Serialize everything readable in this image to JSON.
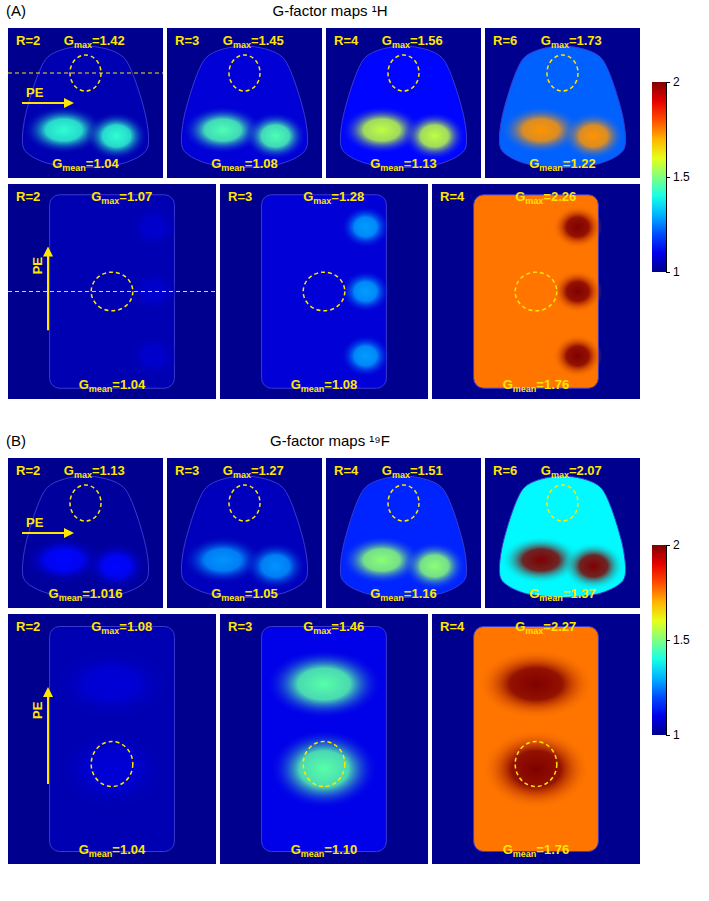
{
  "chart_data": [
    {
      "type": "heatmap",
      "letter": "(A)",
      "title": "G-factor maps ¹H",
      "colorbar": {
        "range": [
          1,
          2
        ],
        "ticks": [
          1,
          1.5,
          2
        ]
      },
      "rows": [
        {
          "orientation": "horizontal",
          "pe": "PE",
          "panels": [
            {
              "R": "R=2",
              "gmax": 1.42,
              "gmax_label": "Gmax=1.42",
              "gmean": 1.04,
              "gmean_label": "Gmean=1.04"
            },
            {
              "R": "R=3",
              "gmax": 1.45,
              "gmax_label": "Gmax=1.45",
              "gmean": 1.08,
              "gmean_label": "Gmean=1.08"
            },
            {
              "R": "R=4",
              "gmax": 1.56,
              "gmax_label": "Gmax=1.56",
              "gmean": 1.13,
              "gmean_label": "Gmean=1.13"
            },
            {
              "R": "R=6",
              "gmax": 1.73,
              "gmax_label": "Gmax=1.73",
              "gmean": 1.22,
              "gmean_label": "Gmean=1.22"
            }
          ]
        },
        {
          "orientation": "vertical",
          "pe": "PE",
          "panels": [
            {
              "R": "R=2",
              "gmax": 1.07,
              "gmax_label": "Gmax=1.07",
              "gmean": 1.04,
              "gmean_label": "Gmean=1.04"
            },
            {
              "R": "R=3",
              "gmax": 1.28,
              "gmax_label": "Gmax=1.28",
              "gmean": 1.08,
              "gmean_label": "Gmean=1.08"
            },
            {
              "R": "R=4",
              "gmax": 2.26,
              "gmax_label": "Gmax=2.26",
              "gmean": 1.76,
              "gmean_label": "Gmean=1.76"
            }
          ]
        }
      ]
    },
    {
      "type": "heatmap",
      "letter": "(B)",
      "title": "G-factor maps ¹⁹F",
      "colorbar": {
        "range": [
          1,
          2
        ],
        "ticks": [
          1,
          1.5,
          2
        ]
      },
      "rows": [
        {
          "orientation": "horizontal",
          "pe": "PE",
          "panels": [
            {
              "R": "R=2",
              "gmax": 1.13,
              "gmax_label": "Gmax=1.13",
              "gmean": 1.016,
              "gmean_label": "Gmean=1.016"
            },
            {
              "R": "R=3",
              "gmax": 1.27,
              "gmax_label": "Gmax=1.27",
              "gmean": 1.05,
              "gmean_label": "Gmean=1.05"
            },
            {
              "R": "R=4",
              "gmax": 1.51,
              "gmax_label": "Gmax=1.51",
              "gmean": 1.16,
              "gmean_label": "Gmean=1.16"
            },
            {
              "R": "R=6",
              "gmax": 2.07,
              "gmax_label": "Gmax=2.07",
              "gmean": 1.37,
              "gmean_label": "Gmean=1.37"
            }
          ]
        },
        {
          "orientation": "vertical",
          "pe": "PE",
          "panels": [
            {
              "R": "R=2",
              "gmax": 1.08,
              "gmax_label": "Gmax=1.08",
              "gmean": 1.04,
              "gmean_label": "Gmean=1.04"
            },
            {
              "R": "R=3",
              "gmax": 1.46,
              "gmax_label": "Gmax=1.46",
              "gmean": 1.1,
              "gmean_label": "Gmean=1.10"
            },
            {
              "R": "R=4",
              "gmax": 2.27,
              "gmax_label": "Gmax=2.27",
              "gmean": 1.76,
              "gmean_label": "Gmean=1.76"
            }
          ]
        }
      ]
    }
  ]
}
